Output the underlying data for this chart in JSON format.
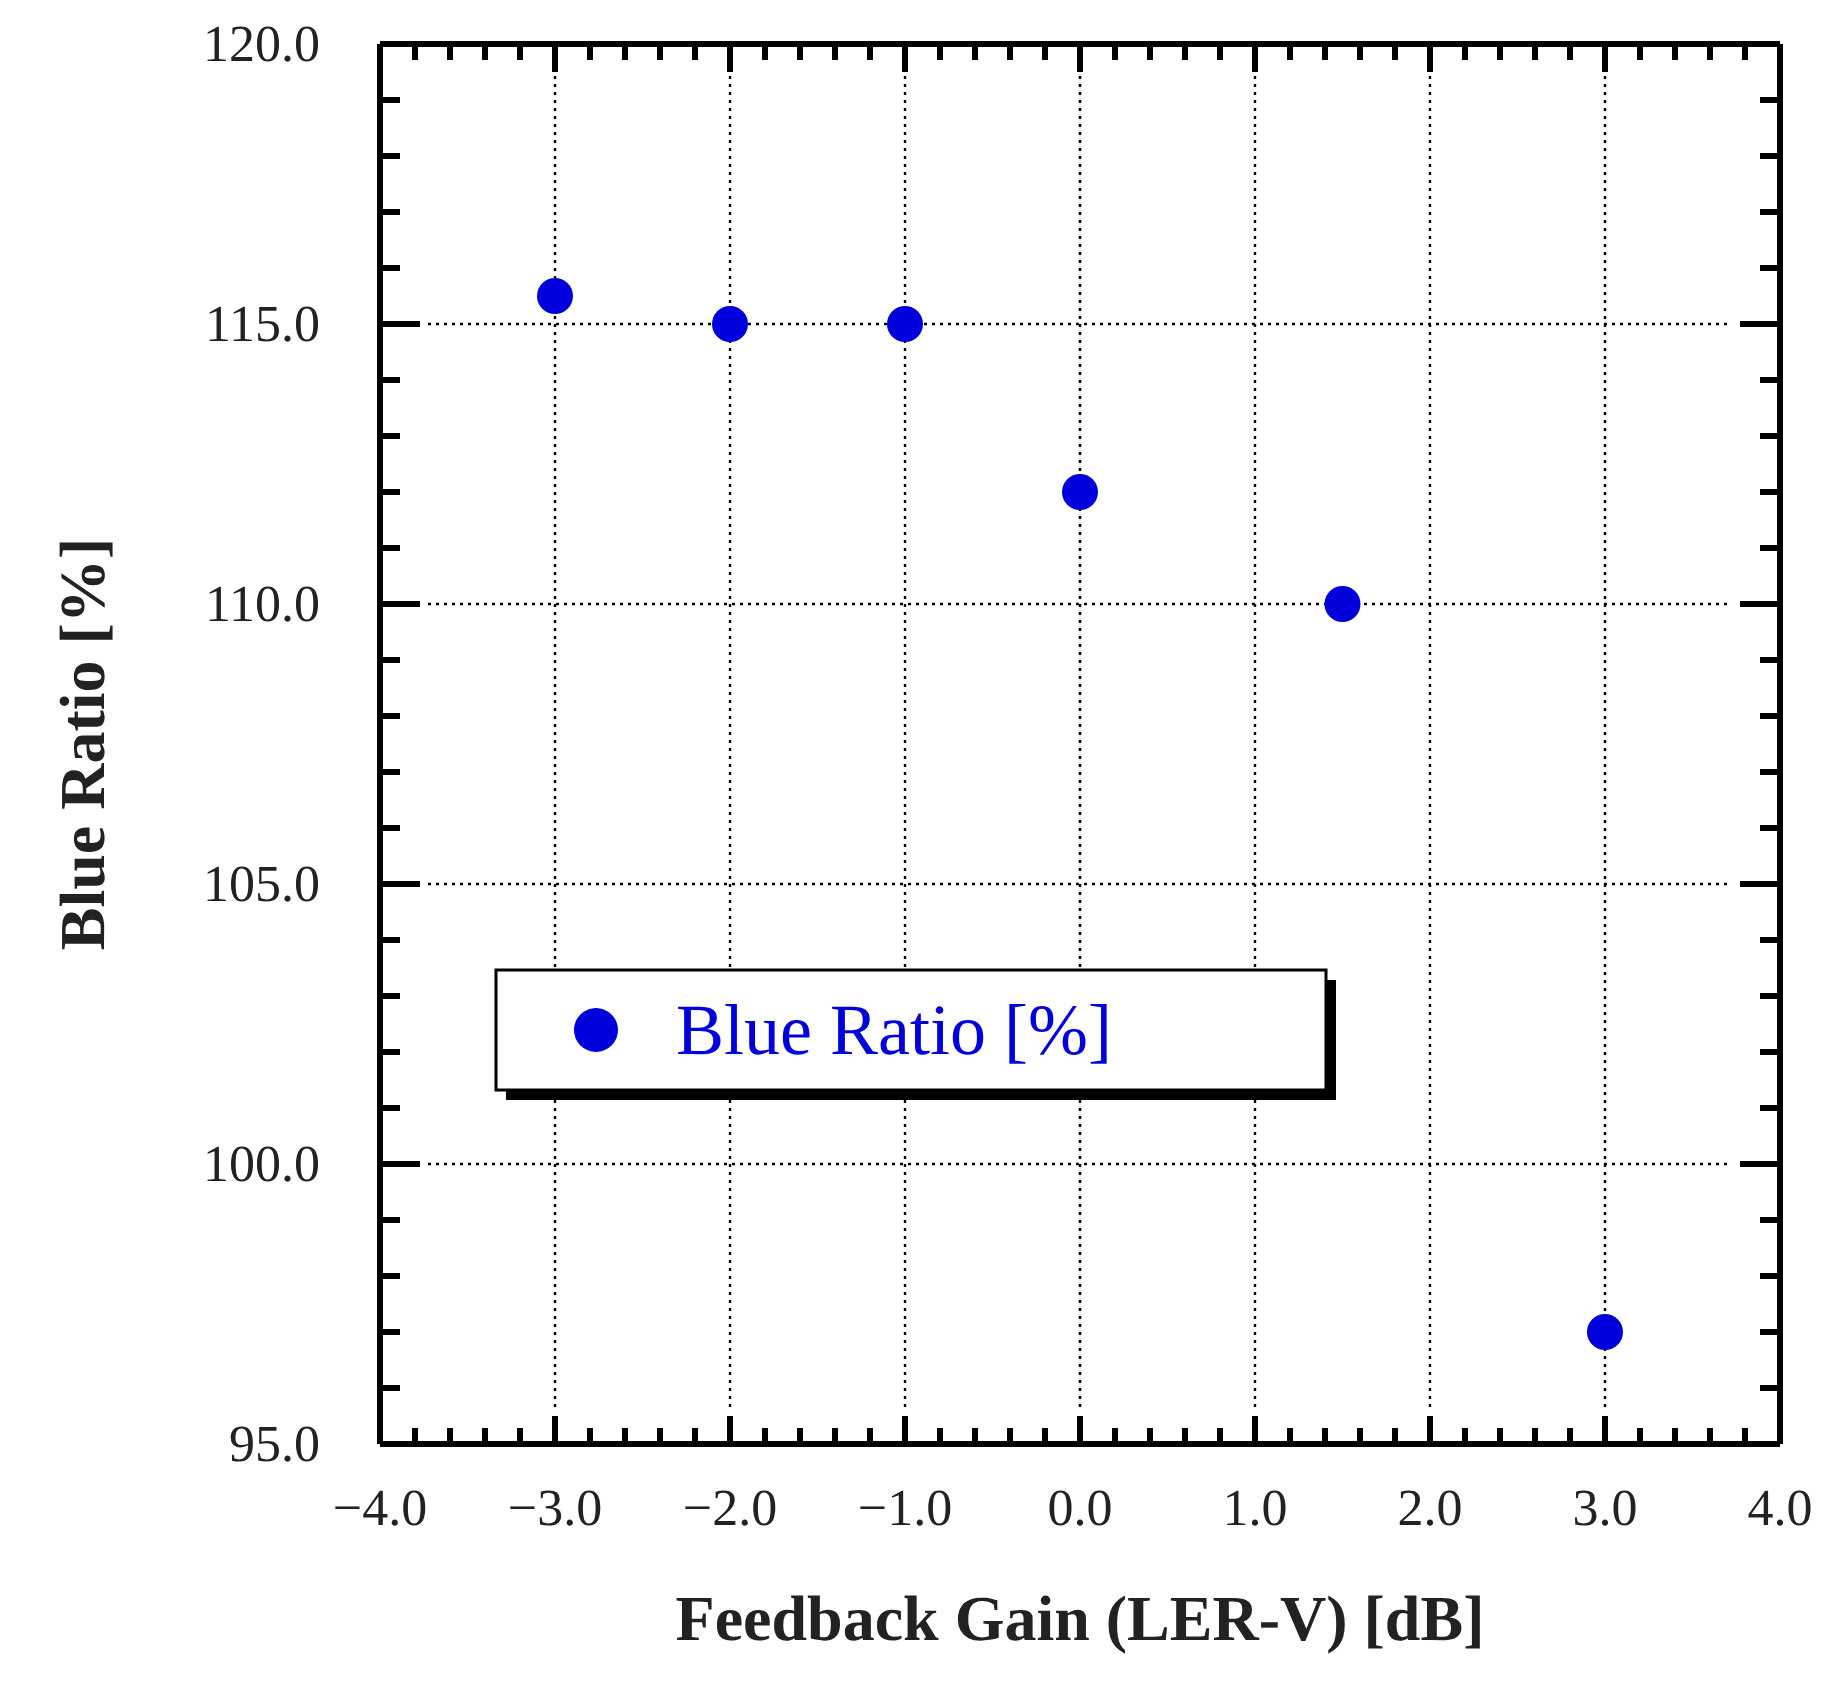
{
  "chart_data": {
    "type": "scatter",
    "xlabel": "Feedback Gain (LER-V) [dB]",
    "ylabel": "Blue Ratio [%]",
    "x": [
      -3,
      -2,
      -1,
      0,
      1.5,
      3
    ],
    "series": [
      {
        "name": "Blue Ratio [%]",
        "color": "#0000dd",
        "values": [
          115.5,
          115,
          115,
          112,
          110,
          97
        ]
      }
    ],
    "xlim": [
      -4,
      4
    ],
    "ylim": [
      95,
      120
    ],
    "xticks": [
      {
        "value": -4,
        "label": "−4.0"
      },
      {
        "value": -3,
        "label": "−3.0"
      },
      {
        "value": -2,
        "label": "−2.0"
      },
      {
        "value": -1,
        "label": "−1.0"
      },
      {
        "value": 0,
        "label": "0.0"
      },
      {
        "value": 1,
        "label": "1.0"
      },
      {
        "value": 2,
        "label": "2.0"
      },
      {
        "value": 3,
        "label": "3.0"
      },
      {
        "value": 4,
        "label": "4.0"
      }
    ],
    "yticks": [
      {
        "value": 95,
        "label": "95.0"
      },
      {
        "value": 100,
        "label": "100.0"
      },
      {
        "value": 105,
        "label": "105.0"
      },
      {
        "value": 110,
        "label": "110.0"
      },
      {
        "value": 115,
        "label": "115.0"
      },
      {
        "value": 120,
        "label": "120.0"
      }
    ],
    "grid": true,
    "legend": "center",
    "marker": "circle"
  }
}
